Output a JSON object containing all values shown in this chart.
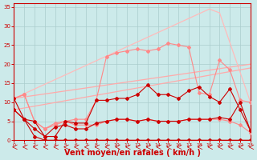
{
  "background_color": "#cceaea",
  "grid_color": "#aacccc",
  "xlabel": "Vent moyen/en rafales ( km/h )",
  "xlabel_color": "#cc0000",
  "xlabel_fontsize": 7,
  "tick_color": "#cc0000",
  "xlim": [
    0,
    23
  ],
  "ylim": [
    0,
    36
  ],
  "yticks": [
    0,
    5,
    10,
    15,
    20,
    25,
    30,
    35
  ],
  "xticks": [
    0,
    1,
    2,
    3,
    4,
    5,
    6,
    7,
    8,
    9,
    10,
    11,
    12,
    13,
    14,
    15,
    16,
    17,
    18,
    19,
    20,
    21,
    22,
    23
  ],
  "lines": [
    {
      "x": [
        0,
        1,
        2,
        3,
        4,
        5,
        6,
        7,
        8,
        9,
        10,
        11,
        12,
        13,
        14,
        15,
        16,
        17,
        18,
        19,
        20,
        21,
        22,
        23
      ],
      "y": [
        8,
        5.5,
        3,
        1,
        1,
        5,
        4.5,
        4.5,
        10.5,
        10.5,
        11,
        11,
        12,
        14.5,
        12,
        12,
        11,
        13,
        14,
        11.5,
        10,
        13.5,
        8,
        2.5
      ],
      "color": "#cc0000",
      "marker": "D",
      "markersize": 2,
      "linewidth": 0.8,
      "zorder": 5
    },
    {
      "x": [
        0,
        1,
        2,
        3,
        4,
        5,
        6,
        7,
        8,
        9,
        10,
        11,
        12,
        13,
        14,
        15,
        16,
        17,
        18,
        19,
        20,
        21,
        22,
        23
      ],
      "y": [
        11,
        5.5,
        5,
        1,
        3.5,
        4,
        3,
        3,
        4.5,
        5,
        5.5,
        5.5,
        5,
        5.5,
        5,
        5,
        5,
        5.5,
        5.5,
        5.5,
        6,
        5.5,
        10,
        2.5
      ],
      "color": "#cc0000",
      "marker": "D",
      "markersize": 2,
      "linewidth": 0.8,
      "zorder": 5
    },
    {
      "x": [
        0,
        1,
        2,
        3,
        4,
        5,
        6,
        7,
        8,
        9,
        10,
        11,
        12,
        13,
        14,
        15,
        16,
        17,
        18,
        19,
        20,
        21,
        22,
        23
      ],
      "y": [
        8,
        5.5,
        1,
        0,
        0,
        0,
        0,
        0,
        0,
        0,
        0,
        0,
        0,
        0,
        0,
        0,
        0,
        0,
        0,
        0,
        0,
        0,
        0,
        0
      ],
      "color": "#cc0000",
      "marker": "D",
      "markersize": 2,
      "linewidth": 0.8,
      "zorder": 5
    },
    {
      "x": [
        0,
        1,
        2,
        3,
        4,
        5,
        6,
        7,
        8,
        9,
        10,
        11,
        12,
        13,
        14,
        15,
        16,
        17,
        18,
        19,
        20,
        21,
        22,
        23
      ],
      "y": [
        11,
        12,
        5,
        3,
        4,
        5,
        4,
        4,
        4,
        5,
        5.5,
        5.5,
        5,
        5.5,
        5,
        5,
        5,
        5.5,
        5.5,
        5.5,
        5.5,
        5,
        4,
        2
      ],
      "color": "#ff8888",
      "marker": "D",
      "markersize": 2,
      "linewidth": 0.8,
      "zorder": 4
    },
    {
      "x": [
        0,
        1,
        2,
        3,
        4,
        5,
        6,
        7,
        8,
        9,
        10,
        11,
        12,
        13,
        14,
        15,
        16,
        17,
        18,
        19,
        20,
        21,
        22,
        23
      ],
      "y": [
        11,
        12,
        5,
        3,
        4.5,
        5,
        5.5,
        5.5,
        10.5,
        22,
        23,
        23.5,
        24,
        23.5,
        24,
        25.5,
        25,
        24.5,
        12.5,
        12,
        21,
        18.5,
        10.5,
        10
      ],
      "color": "#ff8888",
      "marker": "D",
      "markersize": 2,
      "linewidth": 0.8,
      "zorder": 4
    },
    {
      "x": [
        0,
        23
      ],
      "y": [
        11,
        20
      ],
      "color": "#ffaaaa",
      "marker": null,
      "markersize": 0,
      "linewidth": 0.9,
      "zorder": 2
    },
    {
      "x": [
        0,
        23
      ],
      "y": [
        8,
        19
      ],
      "color": "#ffaaaa",
      "marker": null,
      "markersize": 0,
      "linewidth": 0.9,
      "zorder": 2
    },
    {
      "x": [
        0,
        19,
        20,
        23
      ],
      "y": [
        11,
        34.5,
        33.5,
        10
      ],
      "color": "#ffbbbb",
      "marker": null,
      "markersize": 0,
      "linewidth": 0.9,
      "zorder": 1
    }
  ],
  "spine_color": "#cc0000",
  "arrow_color": "#cc0000"
}
